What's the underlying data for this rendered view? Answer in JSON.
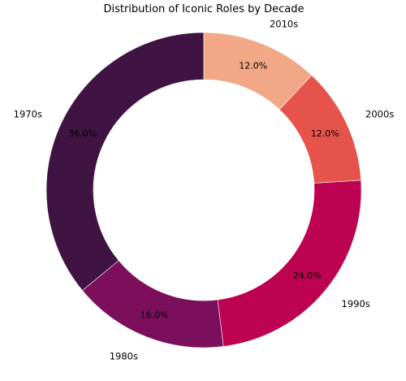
{
  "chart_data": {
    "type": "pie",
    "style": "donut",
    "title": "Distribution of Iconic Roles by Decade",
    "start_angle_deg": 90,
    "direction": "counterclockwise",
    "slices": [
      {
        "label": "1970s",
        "value": 36.0,
        "pct_label": "36.0%",
        "color": "#3f1442"
      },
      {
        "label": "1980s",
        "value": 16.0,
        "pct_label": "16.0%",
        "color": "#7b0f5c"
      },
      {
        "label": "1990s",
        "value": 24.0,
        "pct_label": "24.0%",
        "color": "#bc0251"
      },
      {
        "label": "2000s",
        "value": 12.0,
        "pct_label": "12.0%",
        "color": "#e5534b"
      },
      {
        "label": "2010s",
        "value": 12.0,
        "pct_label": "12.0%",
        "color": "#f2a886"
      }
    ]
  }
}
